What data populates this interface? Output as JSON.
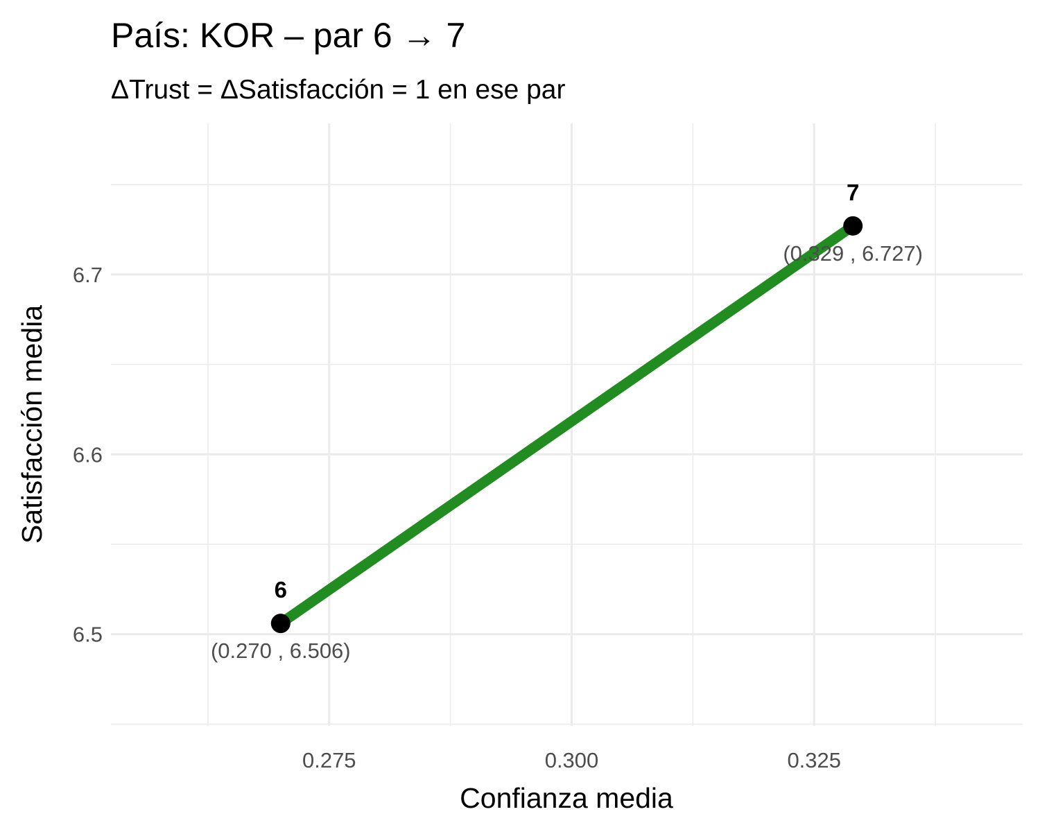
{
  "chart_data": {
    "type": "line",
    "title": "País: KOR – par 6 → 7",
    "subtitle": "ΔTrust = ΔSatisfacción = 1 en ese par",
    "xlabel": "Confianza media",
    "ylabel": "Satisfacción media",
    "xlim": [
      0.2525,
      0.3465
    ],
    "ylim": [
      6.449,
      6.784
    ],
    "x_ticks": [
      0.275,
      0.3,
      0.325
    ],
    "x_tick_labels": [
      "0.275",
      "0.300",
      "0.325"
    ],
    "x_minor_ticks": [
      0.2625,
      0.2875,
      0.3125,
      0.3375
    ],
    "y_ticks": [
      6.5,
      6.6,
      6.7
    ],
    "y_tick_labels": [
      "6.5",
      "6.6",
      "6.7"
    ],
    "y_minor_ticks": [
      6.45,
      6.55,
      6.65,
      6.75
    ],
    "grid": true,
    "line_color": "#228B22",
    "point_color": "#000000",
    "points": [
      {
        "label": "6",
        "x": 0.27,
        "y": 6.506,
        "coord_label": "(0.270 , 6.506)"
      },
      {
        "label": "7",
        "x": 0.329,
        "y": 6.727,
        "coord_label": "(0.329 , 6.727)"
      }
    ]
  }
}
